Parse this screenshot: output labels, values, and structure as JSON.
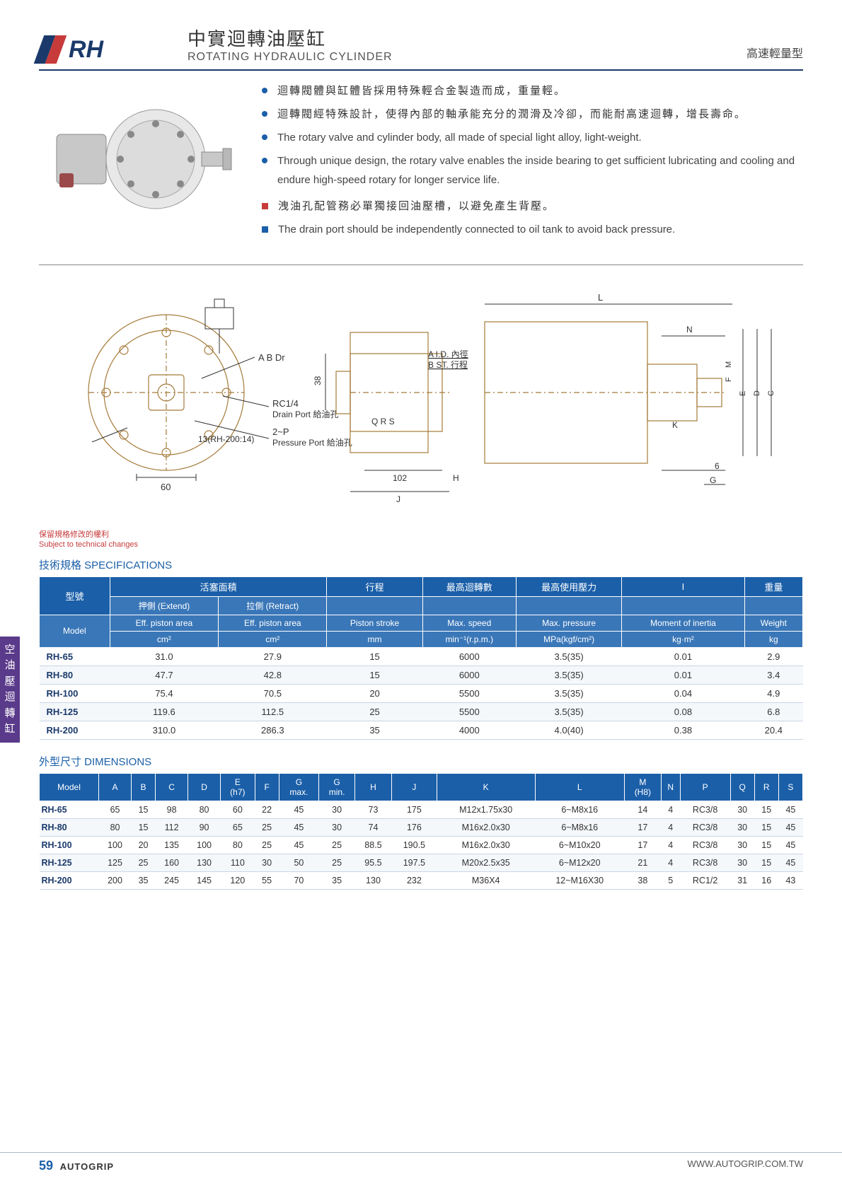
{
  "header": {
    "series": "RH",
    "title_cn": "中實迴轉油壓缸",
    "title_en": "ROTATING HYDRAULIC CYLINDER",
    "type_label": "高速輕量型"
  },
  "features": {
    "cn1": "迴轉閥體與缸體皆採用特殊輕合金製造而成，重量輕。",
    "cn2": "迴轉閥經特殊設計，使得內部的軸承能充分的潤滑及冷卻，而能耐高速迴轉，增長壽命。",
    "en1": "The rotary valve and cylinder body, all made of special light alloy, light-weight.",
    "en2": "Through unique design, the rotary valve enables the inside bearing to get sufficient lubricating and cooling and endure high-speed rotary for longer service life.",
    "warn_cn": "洩油孔配管務必單獨接回油壓槽，以避免產生背壓。",
    "warn_en": "The drain port should be independently connected to oil tank to avoid back pressure."
  },
  "diagram": {
    "labels": {
      "ab_dr": "A  B    Dr",
      "rc14": "RC1/4",
      "drain_port": "Drain Port 給油孔",
      "two_p": "2~P",
      "pressure_port": "Pressure Port 給油孔",
      "thirteen": "13(RH-200:14)",
      "sixty": "60",
      "thirtyeight": "38",
      "qrs": "Q   R     S",
      "one02": "102",
      "h": "H",
      "j": "J",
      "aid": "A I.D. 內徑",
      "bst": "B ST. 行程",
      "l": "L",
      "n": "N",
      "m": "M",
      "f": "F",
      "e": "E",
      "d": "D",
      "c": "C",
      "k": "K",
      "six": "6",
      "g": "G"
    }
  },
  "footnote": {
    "cn": "保留規格修改的權利",
    "en": "Subject to technical changes"
  },
  "spec": {
    "section_label": "技術規格 SPECIFICATIONS",
    "head": {
      "model_cn": "型號",
      "piston_area_cn": "活塞面積",
      "stroke_cn": "行程",
      "maxspeed_cn": "最高迴轉數",
      "maxpress_cn": "最高使用壓力",
      "inertia_cn": "I",
      "weight_cn": "重量",
      "extend_cn": "押側 (Extend)",
      "retract_cn": "拉側 (Retract)",
      "model_en": "Model",
      "eff_extend": "Eff. piston area",
      "eff_retract": "Eff. piston area",
      "stroke_en": "Piston stroke",
      "maxspeed_en": "Max. speed",
      "maxpress_en": "Max. pressure",
      "inertia_en": "Moment of inertia",
      "weight_en": "Weight",
      "unit_cm2a": "cm²",
      "unit_cm2b": "cm²",
      "unit_mm": "mm",
      "unit_rpm": "min⁻¹(r.p.m.)",
      "unit_mpa": "MPa(kgf/cm²)",
      "unit_kgm2": "kg·m²",
      "unit_kg": "kg"
    },
    "rows": [
      {
        "model": "RH-65",
        "ext": "31.0",
        "ret": "27.9",
        "stroke": "15",
        "speed": "6000",
        "press": "3.5(35)",
        "inertia": "0.01",
        "weight": "2.9"
      },
      {
        "model": "RH-80",
        "ext": "47.7",
        "ret": "42.8",
        "stroke": "15",
        "speed": "6000",
        "press": "3.5(35)",
        "inertia": "0.01",
        "weight": "3.4"
      },
      {
        "model": "RH-100",
        "ext": "75.4",
        "ret": "70.5",
        "stroke": "20",
        "speed": "5500",
        "press": "3.5(35)",
        "inertia": "0.04",
        "weight": "4.9"
      },
      {
        "model": "RH-125",
        "ext": "119.6",
        "ret": "112.5",
        "stroke": "25",
        "speed": "5500",
        "press": "3.5(35)",
        "inertia": "0.08",
        "weight": "6.8"
      },
      {
        "model": "RH-200",
        "ext": "310.0",
        "ret": "286.3",
        "stroke": "35",
        "speed": "4000",
        "press": "4.0(40)",
        "inertia": "0.38",
        "weight": "20.4"
      }
    ]
  },
  "dims": {
    "section_label": "外型尺寸 DIMENSIONS",
    "cols": [
      "Model",
      "A",
      "B",
      "C",
      "D",
      "E\n(h7)",
      "F",
      "G\nmax.",
      "G\nmin.",
      "H",
      "J",
      "K",
      "L",
      "M\n(H8)",
      "N",
      "P",
      "Q",
      "R",
      "S"
    ],
    "rows": [
      [
        "RH-65",
        "65",
        "15",
        "98",
        "80",
        "60",
        "22",
        "45",
        "30",
        "73",
        "175",
        "M12x1.75x30",
        "6~M8x16",
        "14",
        "4",
        "RC3/8",
        "30",
        "15",
        "45"
      ],
      [
        "RH-80",
        "80",
        "15",
        "112",
        "90",
        "65",
        "25",
        "45",
        "30",
        "74",
        "176",
        "M16x2.0x30",
        "6~M8x16",
        "17",
        "4",
        "RC3/8",
        "30",
        "15",
        "45"
      ],
      [
        "RH-100",
        "100",
        "20",
        "135",
        "100",
        "80",
        "25",
        "45",
        "25",
        "88.5",
        "190.5",
        "M16x2.0x30",
        "6~M10x20",
        "17",
        "4",
        "RC3/8",
        "30",
        "15",
        "45"
      ],
      [
        "RH-125",
        "125",
        "25",
        "160",
        "130",
        "110",
        "30",
        "50",
        "25",
        "95.5",
        "197.5",
        "M20x2.5x35",
        "6~M12x20",
        "21",
        "4",
        "RC3/8",
        "30",
        "15",
        "45"
      ],
      [
        "RH-200",
        "200",
        "35",
        "245",
        "145",
        "120",
        "55",
        "70",
        "35",
        "130",
        "232",
        "M36X4",
        "12~M16X30",
        "38",
        "5",
        "RC1/2",
        "31",
        "16",
        "43"
      ]
    ]
  },
  "side_tab": "空油壓迴轉缸",
  "footer": {
    "page": "59",
    "brand": "AUTOGRIP",
    "url": "WWW.AUTOGRIP.COM.TW"
  }
}
